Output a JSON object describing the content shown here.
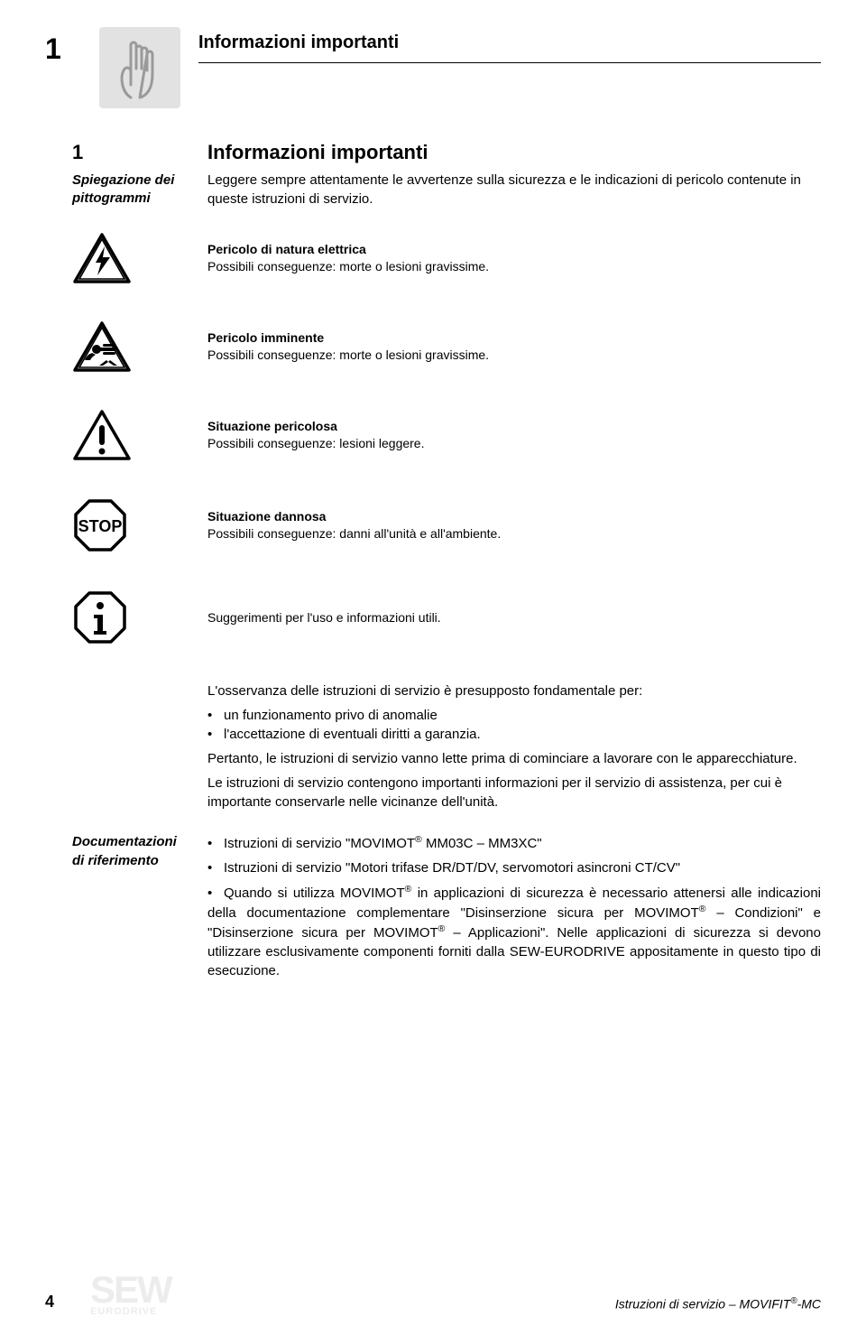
{
  "header": {
    "chapter_number": "1",
    "title": "Informazioni importanti"
  },
  "section": {
    "number": "1",
    "title": "Informazioni importanti"
  },
  "intro": {
    "left_label_line1": "Spiegazione dei",
    "left_label_line2": "pittogrammi",
    "text": "Leggere sempre attentamente le avvertenze sulla sicurezza e le indicazioni di pericolo contenute in queste istruzioni di servizio."
  },
  "pictograms": [
    {
      "bold": "Pericolo di natura elettrica",
      "plain": "Possibili conseguenze: morte o lesioni gravissime."
    },
    {
      "bold": "Pericolo imminente",
      "plain": "Possibili conseguenze: morte o lesioni gravissime."
    },
    {
      "bold": "Situazione pericolosa",
      "plain": "Possibili conseguenze: lesioni leggere."
    },
    {
      "bold": "Situazione dannosa",
      "plain": "Possibili conseguenze: danni all'unità e all'ambiente."
    },
    {
      "bold": "",
      "plain": "Suggerimenti per l'uso e informazioni utili."
    }
  ],
  "body": {
    "p1": "L'osservanza delle istruzioni di servizio è presupposto fondamentale per:",
    "bullets": [
      "un funzionamento privo di anomalie",
      "l'accettazione di eventuali diritti a garanzia."
    ],
    "p2": "Pertanto, le istruzioni di servizio vanno lette prima di cominciare a lavorare con le apparecchiature.",
    "p3": "Le istruzioni di servizio contengono importanti informazioni per il servizio di assistenza, per cui è importante conservarle nelle vicinanze dell'unità."
  },
  "references": {
    "left_label_line1": "Documentazioni",
    "left_label_line2": "di riferimento",
    "items_html": [
      "Istruzioni di servizio \"MOVIMOT<sup>®</sup> MM03C – MM3XC\"",
      "Istruzioni di servizio \"Motori trifase DR/DT/DV, servomotori asincroni CT/CV\"",
      "Quando si utilizza MOVIMOT<sup>®</sup> in applicazioni di sicurezza è necessario attenersi alle indicazioni della documentazione complementare \"Disinserzione sicura per MOVIMOT<sup>®</sup> – Condizioni\" e \"Disinserzione sicura per MOVIMOT<sup>®</sup> – Applicazioni\". Nelle applicazioni di sicurezza si devono utilizzare esclusivamente componenti forniti dalla SEW-EURODRIVE appositamente in questo tipo di esecuzione."
    ]
  },
  "footer": {
    "page_number": "4",
    "right_text_html": "Istruzioni di servizio – MOVIFIT<sup>®</sup>-MC",
    "logo_main": "SEW",
    "logo_sub": "EURODRIVE"
  },
  "colors": {
    "icon_box_bg": "#e2e2e2",
    "text": "#000000",
    "logo_gray": "#b5b5b5"
  }
}
